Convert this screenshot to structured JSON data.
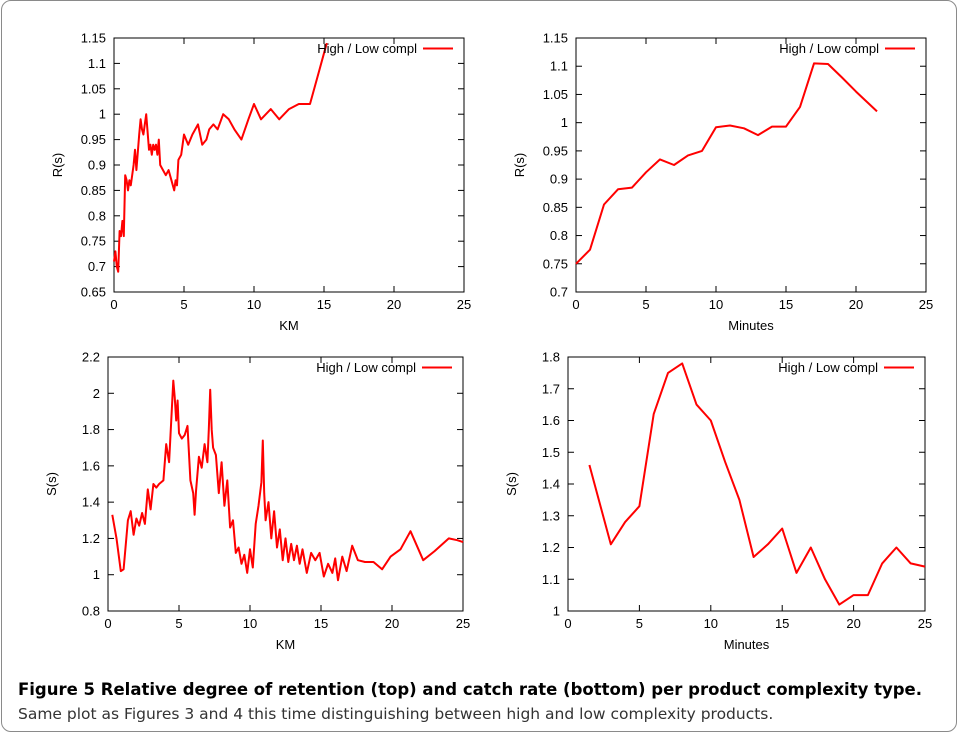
{
  "chart_data": [
    {
      "type": "line",
      "xlabel": "KM",
      "ylabel": "R(s)",
      "xlim": [
        0,
        25
      ],
      "ylim": [
        0.65,
        1.15
      ],
      "xticks": [
        "0",
        "5",
        "10",
        "15",
        "20",
        "25"
      ],
      "yticks": [
        "0.65",
        "0.7",
        "0.75",
        "0.8",
        "0.85",
        "0.9",
        "0.95",
        "1",
        "1.05",
        "1.1",
        "1.15"
      ],
      "legend_position": "top-right",
      "series": [
        {
          "name": "High / Low compl",
          "color": "#ff0000",
          "x": [
            0,
            0.1,
            0.2,
            0.3,
            0.4,
            0.5,
            0.6,
            0.7,
            0.8,
            0.9,
            1.0,
            1.1,
            1.2,
            1.4,
            1.5,
            1.6,
            1.8,
            1.9,
            2.0,
            2.1,
            2.3,
            2.5,
            2.6,
            2.7,
            2.8,
            2.9,
            3.0,
            3.1,
            3.2,
            3.3,
            3.5,
            3.7,
            3.9,
            4.1,
            4.3,
            4.4,
            4.5,
            4.6,
            4.8,
            5.0,
            5.3,
            5.6,
            6.0,
            6.3,
            6.6,
            6.8,
            7.1,
            7.4,
            7.8,
            8.2,
            8.6,
            9.1,
            9.6,
            10.0,
            10.5,
            11.2,
            11.8,
            12.5,
            13.2,
            14.0,
            14.6,
            15.0,
            15.2
          ],
          "y": [
            0.71,
            0.73,
            0.7,
            0.69,
            0.77,
            0.76,
            0.79,
            0.76,
            0.88,
            0.87,
            0.85,
            0.87,
            0.86,
            0.9,
            0.93,
            0.89,
            0.96,
            0.99,
            0.97,
            0.96,
            1.0,
            0.93,
            0.94,
            0.92,
            0.94,
            0.93,
            0.94,
            0.92,
            0.95,
            0.9,
            0.89,
            0.88,
            0.89,
            0.87,
            0.85,
            0.87,
            0.86,
            0.91,
            0.92,
            0.96,
            0.94,
            0.96,
            0.98,
            0.94,
            0.95,
            0.97,
            0.98,
            0.97,
            1.0,
            0.99,
            0.97,
            0.95,
            0.99,
            1.02,
            0.99,
            1.01,
            0.99,
            1.01,
            1.02,
            1.02,
            1.08,
            1.12,
            1.14
          ]
        }
      ]
    },
    {
      "type": "line",
      "xlabel": "Minutes",
      "ylabel": "R(s)",
      "xlim": [
        0,
        25
      ],
      "ylim": [
        0.7,
        1.15
      ],
      "xticks": [
        "0",
        "5",
        "10",
        "15",
        "20",
        "25"
      ],
      "yticks": [
        "0.7",
        "0.75",
        "0.8",
        "0.85",
        "0.9",
        "0.95",
        "1",
        "1.05",
        "1.1",
        "1.15"
      ],
      "legend_position": "top-right",
      "series": [
        {
          "name": "High / Low compl",
          "color": "#ff0000",
          "x": [
            0,
            1,
            2,
            3,
            4,
            5,
            6,
            7,
            8,
            9,
            10,
            11,
            12,
            13,
            14,
            15,
            16,
            17,
            18,
            19,
            20,
            21.5
          ],
          "y": [
            0.75,
            0.775,
            0.855,
            0.882,
            0.885,
            0.912,
            0.935,
            0.925,
            0.942,
            0.95,
            0.992,
            0.995,
            0.99,
            0.978,
            0.993,
            0.993,
            1.028,
            1.105,
            1.104,
            1.08,
            1.055,
            1.02
          ]
        }
      ]
    },
    {
      "type": "line",
      "xlabel": "KM",
      "ylabel": "S(s)",
      "xlim": [
        0,
        25
      ],
      "ylim": [
        0.8,
        2.2
      ],
      "xticks": [
        "0",
        "5",
        "10",
        "15",
        "20",
        "25"
      ],
      "yticks": [
        "0.8",
        "1",
        "1.2",
        "1.4",
        "1.6",
        "1.8",
        "2",
        "2.2"
      ],
      "legend_position": "top-right",
      "series": [
        {
          "name": "High / Low compl",
          "color": "#ff0000",
          "x": [
            0.3,
            0.6,
            0.9,
            1.1,
            1.4,
            1.6,
            1.8,
            2.0,
            2.2,
            2.4,
            2.6,
            2.8,
            3.0,
            3.2,
            3.4,
            3.6,
            3.9,
            4.1,
            4.3,
            4.5,
            4.6,
            4.7,
            4.8,
            4.9,
            5.0,
            5.2,
            5.4,
            5.6,
            5.8,
            6.0,
            6.1,
            6.2,
            6.4,
            6.6,
            6.8,
            7.0,
            7.1,
            7.2,
            7.3,
            7.4,
            7.6,
            7.8,
            8.0,
            8.2,
            8.4,
            8.6,
            8.8,
            9.0,
            9.2,
            9.4,
            9.6,
            9.8,
            10.0,
            10.2,
            10.4,
            10.6,
            10.8,
            10.9,
            11.0,
            11.1,
            11.3,
            11.5,
            11.7,
            11.9,
            12.1,
            12.3,
            12.5,
            12.7,
            12.9,
            13.1,
            13.3,
            13.5,
            13.7,
            14.0,
            14.3,
            14.6,
            14.9,
            15.2,
            15.5,
            15.8,
            16.0,
            16.2,
            16.5,
            16.8,
            17.2,
            17.6,
            18.1,
            18.7,
            19.3,
            19.9,
            20.6,
            21.3,
            22.2,
            23.0,
            24.0,
            24.6,
            25.0
          ],
          "y": [
            1.33,
            1.2,
            1.02,
            1.03,
            1.3,
            1.35,
            1.22,
            1.31,
            1.27,
            1.34,
            1.28,
            1.47,
            1.36,
            1.5,
            1.48,
            1.5,
            1.52,
            1.72,
            1.62,
            1.92,
            2.07,
            1.98,
            1.85,
            1.96,
            1.78,
            1.75,
            1.77,
            1.82,
            1.52,
            1.45,
            1.33,
            1.46,
            1.65,
            1.59,
            1.72,
            1.62,
            1.8,
            2.02,
            1.8,
            1.7,
            1.66,
            1.45,
            1.62,
            1.38,
            1.52,
            1.26,
            1.3,
            1.12,
            1.15,
            1.06,
            1.11,
            1.01,
            1.14,
            1.04,
            1.28,
            1.38,
            1.51,
            1.74,
            1.45,
            1.3,
            1.4,
            1.2,
            1.35,
            1.15,
            1.25,
            1.08,
            1.2,
            1.07,
            1.17,
            1.08,
            1.16,
            1.06,
            1.14,
            1.01,
            1.12,
            1.08,
            1.12,
            0.99,
            1.06,
            1.01,
            1.09,
            0.97,
            1.1,
            1.02,
            1.16,
            1.08,
            1.07,
            1.07,
            1.03,
            1.1,
            1.14,
            1.24,
            1.08,
            1.13,
            1.2,
            1.19,
            1.18
          ]
        }
      ]
    },
    {
      "type": "line",
      "xlabel": "Minutes",
      "ylabel": "S(s)",
      "xlim": [
        0,
        25
      ],
      "ylim": [
        1,
        1.8
      ],
      "xticks": [
        "0",
        "5",
        "10",
        "15",
        "20",
        "25"
      ],
      "yticks": [
        "1",
        "1.1",
        "1.2",
        "1.3",
        "1.4",
        "1.5",
        "1.6",
        "1.7",
        "1.8"
      ],
      "legend_position": "top-right",
      "series": [
        {
          "name": "High / Low compl",
          "color": "#ff0000",
          "x": [
            1.5,
            3,
            4,
            5,
            6,
            7,
            8,
            9,
            10,
            11,
            12,
            13,
            14,
            15,
            16,
            17,
            18,
            19,
            20,
            21,
            22,
            23,
            24,
            25
          ],
          "y": [
            1.46,
            1.21,
            1.28,
            1.33,
            1.62,
            1.75,
            1.78,
            1.65,
            1.6,
            1.47,
            1.35,
            1.17,
            1.21,
            1.26,
            1.12,
            1.2,
            1.1,
            1.02,
            1.05,
            1.05,
            1.15,
            1.2,
            1.15,
            1.14
          ]
        }
      ]
    }
  ],
  "caption": {
    "title": "Figure 5  Relative degree of retention (top) and catch rate (bottom) per product complexity type.",
    "text": "Same plot as Figures 3 and 4 this time distinguishing between high and low complexity products."
  }
}
